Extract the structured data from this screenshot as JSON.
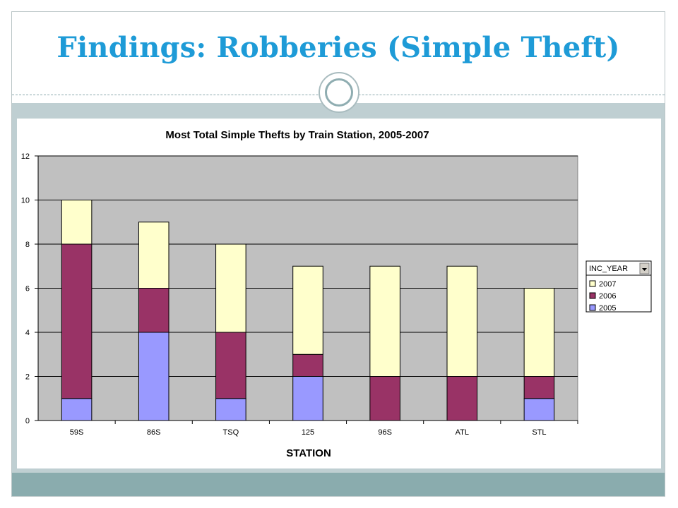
{
  "slide": {
    "title": "Findings: Robberies (Simple Theft)"
  },
  "colors": {
    "title": "#1e9bd7",
    "plot_background": "#c0c0c0",
    "series_2007": "#ffffcc",
    "series_2006": "#993366",
    "series_2005": "#9999ff"
  },
  "chart_data": {
    "type": "bar",
    "stacked": true,
    "title": "Most Total Simple Thefts by Train Station, 2005-2007",
    "xlabel": "STATION",
    "ylabel": "",
    "categories": [
      "59S",
      "86S",
      "TSQ",
      "125",
      "96S",
      "ATL",
      "STL"
    ],
    "series": [
      {
        "name": "2005",
        "color": "#9999ff",
        "values": [
          1,
          4,
          1,
          2,
          0,
          0,
          1
        ]
      },
      {
        "name": "2006",
        "color": "#993366",
        "values": [
          7,
          2,
          3,
          1,
          2,
          2,
          1
        ]
      },
      {
        "name": "2007",
        "color": "#ffffcc",
        "values": [
          2,
          3,
          4,
          4,
          5,
          5,
          4
        ]
      }
    ],
    "ylim": [
      0,
      12
    ],
    "yticks": [
      0,
      2,
      4,
      6,
      8,
      10,
      12
    ],
    "grid": true,
    "legend": {
      "title": "INC_YEAR",
      "placement": "right",
      "order": [
        "2007",
        "2006",
        "2005"
      ]
    }
  }
}
